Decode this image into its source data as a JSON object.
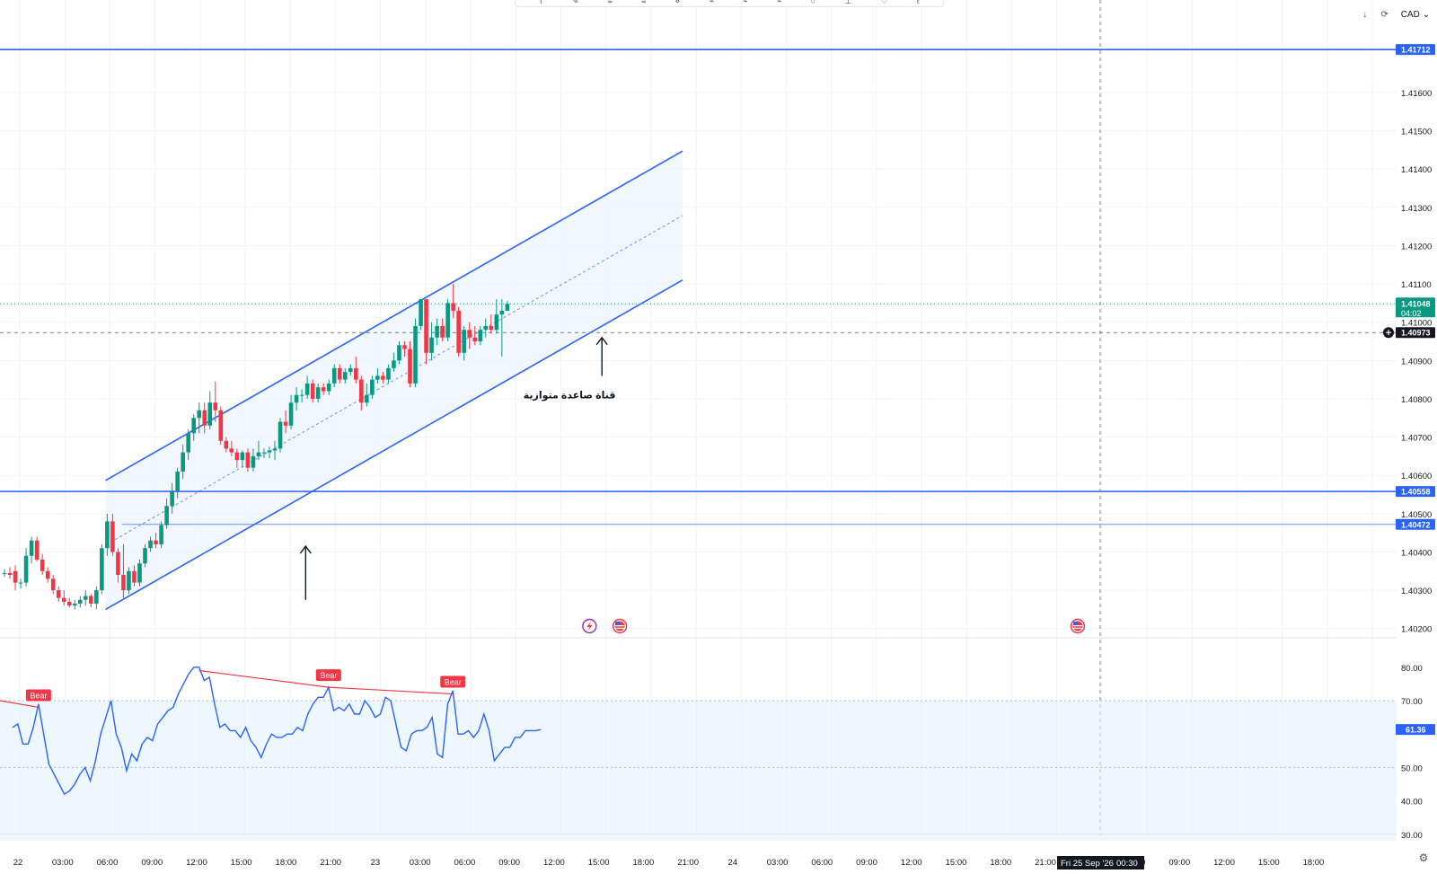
{
  "toolbar": {
    "icons": [
      "brush-icon",
      "pencil-icon",
      "lines-icon",
      "lines-icon",
      "node-icon",
      "path-icon",
      "path-icon",
      "path-icon",
      "path-icon",
      "circle-icon",
      "pin-icon",
      "heart-icon",
      "pin-icon"
    ]
  },
  "topright": {
    "download_icon": "↓",
    "refresh_icon": "⟳",
    "currency": "CAD",
    "currency_arrow": "⌄"
  },
  "colors": {
    "bull": "#089981",
    "bear": "#f23645",
    "channel": "#2962ff",
    "channel_fill": "#eef4fd",
    "hline": "#2962ff",
    "rsi": "#2962ff",
    "rsi_band": "#e3f2fd",
    "divergence": "#f23645"
  },
  "settings_icon": "⚙",
  "chart_data": [
    {
      "type": "candlestick",
      "title": "",
      "ylim": [
        1.419,
        1.4177
      ],
      "y_range": [
        1.4018,
        1.4177
      ],
      "y_ticks": [
        "1.41600",
        "1.41500",
        "1.41400",
        "1.41300",
        "1.41200",
        "1.41100",
        "1.41000",
        "1.40900",
        "1.40800",
        "1.40700",
        "1.40600",
        "1.40500",
        "1.40400",
        "1.40300",
        "1.40200"
      ],
      "x_ticks": [
        "22",
        "03:00",
        "06:00",
        "09:00",
        "12:00",
        "15:00",
        "18:00",
        "21:00",
        "23",
        "03:00",
        "06:00",
        "09:00",
        "12:00",
        "15:00",
        "18:00",
        "21:00",
        "24",
        "03:00",
        "06:00",
        "09:00",
        "12:00",
        "15:00",
        "18:00",
        "21:00",
        "00:30",
        "06:00",
        "09:00",
        "12:00",
        "15:00",
        "18:00"
      ],
      "candles": [
        {
          "o": 1.40345,
          "h": 1.40355,
          "l": 1.40335,
          "c": 1.40345
        },
        {
          "o": 1.40345,
          "h": 1.4036,
          "l": 1.4033,
          "c": 1.4034
        },
        {
          "o": 1.4035,
          "h": 1.40365,
          "l": 1.403,
          "c": 1.4032
        },
        {
          "o": 1.4032,
          "h": 1.4033,
          "l": 1.40305,
          "c": 1.4032
        },
        {
          "o": 1.4032,
          "h": 1.4041,
          "l": 1.4031,
          "c": 1.4039
        },
        {
          "o": 1.4039,
          "h": 1.4044,
          "l": 1.4037,
          "c": 1.4043
        },
        {
          "o": 1.4043,
          "h": 1.4044,
          "l": 1.40375,
          "c": 1.4038
        },
        {
          "o": 1.4038,
          "h": 1.40395,
          "l": 1.4034,
          "c": 1.4035
        },
        {
          "o": 1.4035,
          "h": 1.4036,
          "l": 1.4032,
          "c": 1.4033
        },
        {
          "o": 1.4033,
          "h": 1.4034,
          "l": 1.4029,
          "c": 1.403
        },
        {
          "o": 1.403,
          "h": 1.4031,
          "l": 1.4027,
          "c": 1.4028
        },
        {
          "o": 1.4028,
          "h": 1.403,
          "l": 1.4026,
          "c": 1.4027
        },
        {
          "o": 1.4027,
          "h": 1.4028,
          "l": 1.40255,
          "c": 1.4026
        },
        {
          "o": 1.4026,
          "h": 1.40275,
          "l": 1.4025,
          "c": 1.40265
        },
        {
          "o": 1.40265,
          "h": 1.40285,
          "l": 1.40255,
          "c": 1.40275
        },
        {
          "o": 1.40275,
          "h": 1.403,
          "l": 1.4026,
          "c": 1.40285
        },
        {
          "o": 1.40285,
          "h": 1.4029,
          "l": 1.40255,
          "c": 1.40265
        },
        {
          "o": 1.40265,
          "h": 1.4031,
          "l": 1.4025,
          "c": 1.403
        },
        {
          "o": 1.403,
          "h": 1.4042,
          "l": 1.4029,
          "c": 1.4041
        },
        {
          "o": 1.4041,
          "h": 1.405,
          "l": 1.4039,
          "c": 1.4048
        },
        {
          "o": 1.4048,
          "h": 1.405,
          "l": 1.4039,
          "c": 1.404
        },
        {
          "o": 1.404,
          "h": 1.4041,
          "l": 1.4032,
          "c": 1.4034
        },
        {
          "o": 1.4034,
          "h": 1.4042,
          "l": 1.4028,
          "c": 1.403
        },
        {
          "o": 1.403,
          "h": 1.4036,
          "l": 1.4029,
          "c": 1.4035
        },
        {
          "o": 1.4035,
          "h": 1.40365,
          "l": 1.4031,
          "c": 1.4032
        },
        {
          "o": 1.4032,
          "h": 1.4038,
          "l": 1.4031,
          "c": 1.4037
        },
        {
          "o": 1.4037,
          "h": 1.4042,
          "l": 1.4036,
          "c": 1.4041
        },
        {
          "o": 1.4041,
          "h": 1.4044,
          "l": 1.404,
          "c": 1.4043
        },
        {
          "o": 1.4043,
          "h": 1.4045,
          "l": 1.4041,
          "c": 1.4042
        },
        {
          "o": 1.4042,
          "h": 1.4048,
          "l": 1.4041,
          "c": 1.4047
        },
        {
          "o": 1.4047,
          "h": 1.4054,
          "l": 1.4046,
          "c": 1.4052
        },
        {
          "o": 1.4052,
          "h": 1.4058,
          "l": 1.405,
          "c": 1.4056
        },
        {
          "o": 1.4056,
          "h": 1.4062,
          "l": 1.4054,
          "c": 1.4061
        },
        {
          "o": 1.4061,
          "h": 1.4068,
          "l": 1.4059,
          "c": 1.4066
        },
        {
          "o": 1.4066,
          "h": 1.4072,
          "l": 1.4064,
          "c": 1.4071
        },
        {
          "o": 1.4071,
          "h": 1.4076,
          "l": 1.4069,
          "c": 1.4075
        },
        {
          "o": 1.4075,
          "h": 1.4079,
          "l": 1.4071,
          "c": 1.4077
        },
        {
          "o": 1.4077,
          "h": 1.4079,
          "l": 1.4071,
          "c": 1.4073
        },
        {
          "o": 1.4073,
          "h": 1.4082,
          "l": 1.4072,
          "c": 1.4079
        },
        {
          "o": 1.4079,
          "h": 1.40845,
          "l": 1.4074,
          "c": 1.4077
        },
        {
          "o": 1.4077,
          "h": 1.4078,
          "l": 1.4068,
          "c": 1.4069
        },
        {
          "o": 1.4069,
          "h": 1.407,
          "l": 1.4066,
          "c": 1.4067
        },
        {
          "o": 1.4067,
          "h": 1.4069,
          "l": 1.4065,
          "c": 1.4066
        },
        {
          "o": 1.4066,
          "h": 1.4067,
          "l": 1.4062,
          "c": 1.4064
        },
        {
          "o": 1.4064,
          "h": 1.40665,
          "l": 1.4062,
          "c": 1.4066
        },
        {
          "o": 1.4066,
          "h": 1.4067,
          "l": 1.4061,
          "c": 1.4062
        },
        {
          "o": 1.4062,
          "h": 1.4067,
          "l": 1.4061,
          "c": 1.4065
        },
        {
          "o": 1.4065,
          "h": 1.4069,
          "l": 1.4064,
          "c": 1.4066
        },
        {
          "o": 1.4066,
          "h": 1.4067,
          "l": 1.40645,
          "c": 1.4066
        },
        {
          "o": 1.4066,
          "h": 1.40675,
          "l": 1.40645,
          "c": 1.40665
        },
        {
          "o": 1.40665,
          "h": 1.4069,
          "l": 1.4064,
          "c": 1.4067
        },
        {
          "o": 1.4067,
          "h": 1.4075,
          "l": 1.4066,
          "c": 1.4074
        },
        {
          "o": 1.4074,
          "h": 1.4077,
          "l": 1.4071,
          "c": 1.4073
        },
        {
          "o": 1.4073,
          "h": 1.4081,
          "l": 1.4072,
          "c": 1.4079
        },
        {
          "o": 1.4079,
          "h": 1.4083,
          "l": 1.4077,
          "c": 1.4081
        },
        {
          "o": 1.4081,
          "h": 1.40825,
          "l": 1.4079,
          "c": 1.4081
        },
        {
          "o": 1.4081,
          "h": 1.4086,
          "l": 1.408,
          "c": 1.4084
        },
        {
          "o": 1.4084,
          "h": 1.4085,
          "l": 1.4079,
          "c": 1.408
        },
        {
          "o": 1.408,
          "h": 1.4084,
          "l": 1.4079,
          "c": 1.4083
        },
        {
          "o": 1.4083,
          "h": 1.4084,
          "l": 1.4081,
          "c": 1.4082
        },
        {
          "o": 1.4082,
          "h": 1.4085,
          "l": 1.4081,
          "c": 1.4084
        },
        {
          "o": 1.4084,
          "h": 1.4089,
          "l": 1.4083,
          "c": 1.4088
        },
        {
          "o": 1.4088,
          "h": 1.4089,
          "l": 1.4084,
          "c": 1.4085
        },
        {
          "o": 1.4085,
          "h": 1.4088,
          "l": 1.4084,
          "c": 1.4087
        },
        {
          "o": 1.4087,
          "h": 1.4089,
          "l": 1.4086,
          "c": 1.4088
        },
        {
          "o": 1.4088,
          "h": 1.4091,
          "l": 1.4084,
          "c": 1.4085
        },
        {
          "o": 1.4085,
          "h": 1.4086,
          "l": 1.4077,
          "c": 1.4079
        },
        {
          "o": 1.4079,
          "h": 1.4084,
          "l": 1.4078,
          "c": 1.4081
        },
        {
          "o": 1.4081,
          "h": 1.4086,
          "l": 1.408,
          "c": 1.4085
        },
        {
          "o": 1.4085,
          "h": 1.4088,
          "l": 1.4084,
          "c": 1.4086
        },
        {
          "o": 1.4086,
          "h": 1.4087,
          "l": 1.4084,
          "c": 1.4085
        },
        {
          "o": 1.4085,
          "h": 1.4089,
          "l": 1.4084,
          "c": 1.4088
        },
        {
          "o": 1.4088,
          "h": 1.4092,
          "l": 1.4087,
          "c": 1.409
        },
        {
          "o": 1.409,
          "h": 1.4095,
          "l": 1.4089,
          "c": 1.4094
        },
        {
          "o": 1.4094,
          "h": 1.4095,
          "l": 1.4091,
          "c": 1.4093
        },
        {
          "o": 1.4093,
          "h": 1.4095,
          "l": 1.4083,
          "c": 1.4084
        },
        {
          "o": 1.4084,
          "h": 1.4101,
          "l": 1.4083,
          "c": 1.4099
        },
        {
          "o": 1.4099,
          "h": 1.4106,
          "l": 1.4098,
          "c": 1.4106
        },
        {
          "o": 1.4106,
          "h": 1.4106,
          "l": 1.4089,
          "c": 1.4092
        },
        {
          "o": 1.4092,
          "h": 1.41,
          "l": 1.409,
          "c": 1.4096
        },
        {
          "o": 1.4096,
          "h": 1.4101,
          "l": 1.4094,
          "c": 1.4099
        },
        {
          "o": 1.4099,
          "h": 1.4101,
          "l": 1.4095,
          "c": 1.4096
        },
        {
          "o": 1.4096,
          "h": 1.4106,
          "l": 1.4095,
          "c": 1.4105
        },
        {
          "o": 1.4105,
          "h": 1.411,
          "l": 1.4101,
          "c": 1.4103
        },
        {
          "o": 1.4103,
          "h": 1.4104,
          "l": 1.4091,
          "c": 1.4092
        },
        {
          "o": 1.4092,
          "h": 1.4099,
          "l": 1.409,
          "c": 1.4098
        },
        {
          "o": 1.4098,
          "h": 1.41,
          "l": 1.4093,
          "c": 1.4096
        },
        {
          "o": 1.4096,
          "h": 1.4099,
          "l": 1.4094,
          "c": 1.4095
        },
        {
          "o": 1.4095,
          "h": 1.4099,
          "l": 1.4094,
          "c": 1.4098
        },
        {
          "o": 1.4098,
          "h": 1.4101,
          "l": 1.4096,
          "c": 1.4099
        },
        {
          "o": 1.4099,
          "h": 1.4102,
          "l": 1.4097,
          "c": 1.4098
        },
        {
          "o": 1.4098,
          "h": 1.4106,
          "l": 1.4097,
          "c": 1.4102
        },
        {
          "o": 1.4102,
          "h": 1.4106,
          "l": 1.4091,
          "c": 1.4103
        },
        {
          "o": 1.4103,
          "h": 1.41055,
          "l": 1.4103,
          "c": 1.41048
        }
      ],
      "price_line_labels": [
        {
          "value": "1.41712",
          "color": "#2962ff",
          "kind": "horizontal-line"
        },
        {
          "value": "1.40558",
          "color": "#2962ff",
          "kind": "horizontal-line"
        },
        {
          "value": "1.40472",
          "color": "#2962ff",
          "kind": "horizontal-line"
        },
        {
          "value": "1.41048",
          "color": "#089981",
          "kind": "last-price",
          "countdown": "04:02",
          "under_label": "1.41000"
        },
        {
          "value": "1.40973",
          "color": "#131722",
          "kind": "crosshair"
        }
      ],
      "hlines": [
        1.41712,
        1.40558,
        1.40472
      ],
      "crosshair_price": 1.40973,
      "last_price": 1.41048,
      "channel": {
        "lower_start": {
          "bar": 18.7,
          "price": 1.4025
        },
        "lower_end": {
          "bar": 125.4,
          "price": 1.4111
        },
        "width": 0.00337
      },
      "annotations": [
        {
          "text": "قناة صاعدة متوازية",
          "price": 1.4081,
          "bar": 104.5
        },
        {
          "arrow": "up",
          "bar": 110.5,
          "from_price": 1.4086,
          "to_price": 1.4096
        },
        {
          "arrow": "up",
          "bar": 55.7,
          "from_price": 1.40275,
          "to_price": 1.40415
        }
      ],
      "events": [
        {
          "icon": "lightning-icon",
          "bar": 108.2
        },
        {
          "icon": "flag-us-icon",
          "bar": 113.8
        },
        {
          "icon": "flag-us-icon",
          "bar": 198.5
        }
      ],
      "crosshair_time": "Fri 25 Sep '26"
    },
    {
      "type": "line",
      "title": "",
      "ylim": [
        26,
        85
      ],
      "y_ticks": [
        "80.00",
        "70.00",
        "50.00",
        "40.00",
        "30.00"
      ],
      "band": [
        50,
        70
      ],
      "last_value": "61.36",
      "values": [
        62,
        63,
        57,
        57,
        62,
        69,
        60,
        51,
        48,
        45,
        42,
        43,
        45,
        48,
        50,
        46,
        52,
        60,
        65,
        70,
        60,
        56,
        49,
        54,
        52,
        57,
        59,
        58,
        63,
        65,
        67,
        68,
        72,
        75,
        78,
        80,
        80,
        76,
        77,
        69,
        62,
        63,
        61,
        61,
        59,
        62,
        58,
        56,
        53,
        57,
        60,
        59,
        59,
        60,
        60,
        62,
        61,
        66,
        69,
        71,
        71,
        74,
        67,
        68,
        67,
        69,
        66,
        66,
        70,
        68,
        65,
        66,
        71,
        70,
        63,
        56,
        55,
        60,
        61,
        61,
        62,
        65,
        54,
        53,
        69,
        73,
        60,
        60,
        61,
        59,
        61,
        66,
        61,
        52,
        54,
        56,
        56,
        59,
        59,
        61,
        61,
        61,
        61.36
      ],
      "divergences": [
        {
          "from_i": -1,
          "from_v": 70,
          "to_i": 5,
          "to_v": 68,
          "label": "Bear"
        },
        {
          "from_i": 36,
          "from_v": 79,
          "to_i": 61,
          "to_v": 74,
          "label": "Bear"
        },
        {
          "from_i": 61,
          "from_v": 74,
          "to_i": 85,
          "to_v": 72,
          "label": "Bear"
        }
      ]
    }
  ]
}
